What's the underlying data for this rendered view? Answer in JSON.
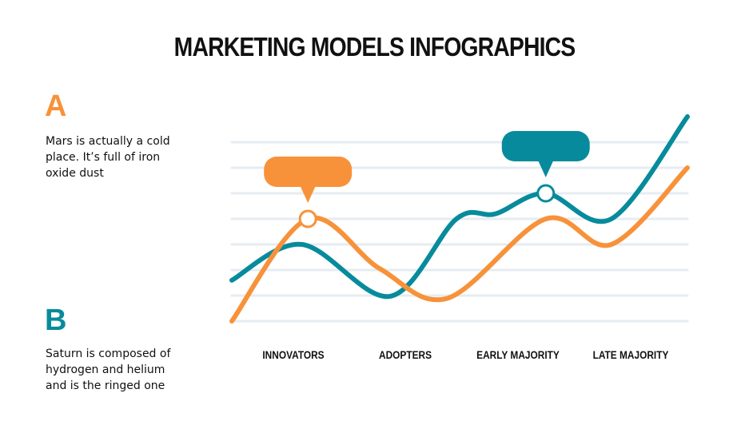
{
  "title": "MARKETING MODELS INFOGRAPHICS",
  "sections": [
    {
      "letter": "A",
      "text": "Mars is actually a cold place. It’s full of iron oxide dust",
      "color": "#f7923a"
    },
    {
      "letter": "B",
      "text": "Saturn is composed of hydrogen and helium and is the ringed one",
      "color": "#078b9c"
    }
  ],
  "chart_data": {
    "type": "line",
    "categories": [
      "INNOVATORS",
      "ADOPTERS",
      "EARLY MAJORITY",
      "LATE MAJORITY"
    ],
    "xlim": [
      0,
      10
    ],
    "ylim": [
      0,
      7
    ],
    "grid": true,
    "gridlines": 8,
    "series": [
      {
        "color": "#078b9c",
        "x": [
          0,
          1.54,
          3.47,
          4.93,
          5.79,
          6.89,
          8.33,
          10
        ],
        "y": [
          1.6,
          3.0,
          0.97,
          4.0,
          4.2,
          5.0,
          4.0,
          8.0
        ],
        "marker_index": 5
      },
      {
        "color": "#f7923a",
        "x": [
          0,
          1.67,
          3.25,
          4.74,
          6.89,
          8.33,
          10
        ],
        "y": [
          0,
          4.0,
          2.05,
          0.9,
          4.0,
          3.0,
          6.0
        ],
        "marker_index": 1
      }
    ]
  }
}
